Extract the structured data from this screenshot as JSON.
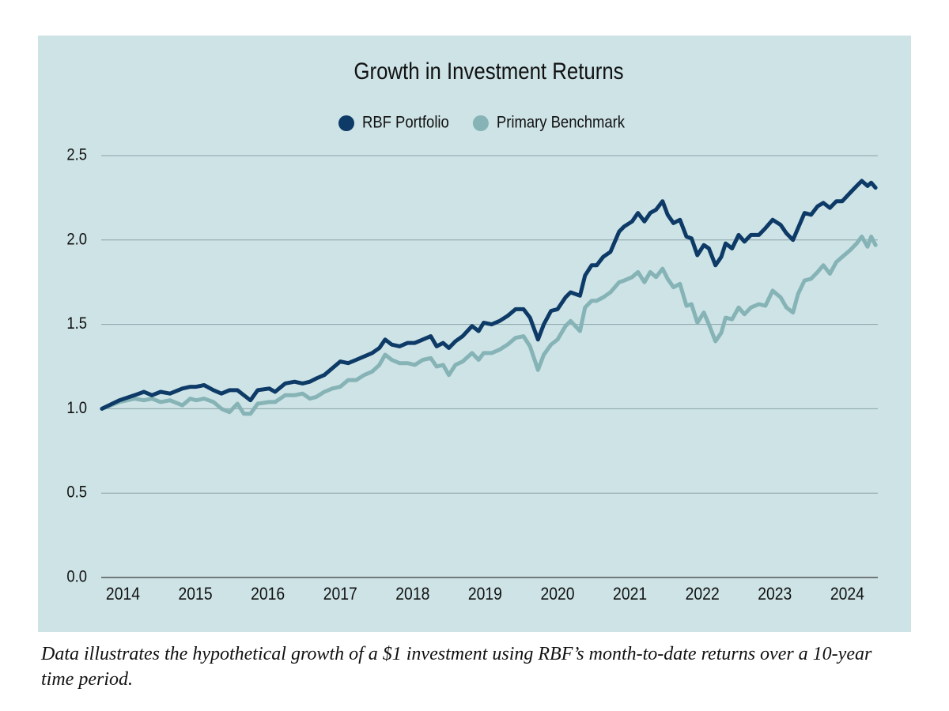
{
  "chart_data": {
    "type": "line",
    "title": "Growth in Investment Returns",
    "caption": "Data illustrates the hypothetical growth of a $1 investment using RBF’s month-to-date returns over a 10-year time period.",
    "x": [
      2014.21,
      2014.45,
      2014.66,
      2014.79,
      2014.9,
      2015.02,
      2015.15,
      2015.32,
      2015.43,
      2015.51,
      2015.62,
      2015.75,
      2015.86,
      2015.97,
      2016.08,
      2016.17,
      2016.26,
      2016.36,
      2016.52,
      2016.6,
      2016.74,
      2016.87,
      2016.98,
      2017.08,
      2017.17,
      2017.28,
      2017.39,
      2017.5,
      2017.61,
      2017.72,
      2017.83,
      2017.94,
      2018.04,
      2018.12,
      2018.21,
      2018.32,
      2018.43,
      2018.53,
      2018.64,
      2018.75,
      2018.83,
      2018.92,
      2019.0,
      2019.09,
      2019.19,
      2019.32,
      2019.41,
      2019.48,
      2019.59,
      2019.7,
      2019.81,
      2019.92,
      2020.03,
      2020.12,
      2020.23,
      2020.31,
      2020.41,
      2020.5,
      2020.61,
      2020.68,
      2020.81,
      2020.88,
      2020.97,
      2021.04,
      2021.13,
      2021.23,
      2021.35,
      2021.42,
      2021.53,
      2021.61,
      2021.7,
      2021.78,
      2021.86,
      2021.95,
      2022.02,
      2022.1,
      2022.19,
      2022.28,
      2022.35,
      2022.43,
      2022.52,
      2022.59,
      2022.68,
      2022.76,
      2022.82,
      2022.91,
      2023.0,
      2023.08,
      2023.17,
      2023.28,
      2023.37,
      2023.47,
      2023.58,
      2023.66,
      2023.75,
      2023.82,
      2023.91,
      2024.0,
      2024.09,
      2024.17,
      2024.26,
      2024.35,
      2024.43,
      2024.54,
      2024.63,
      2024.7,
      2024.78,
      2024.83,
      2024.89
    ],
    "series": [
      {
        "name": "RBF Portfolio",
        "color": "#0d3a66",
        "values": [
          1.0,
          1.05,
          1.08,
          1.1,
          1.08,
          1.1,
          1.09,
          1.12,
          1.13,
          1.13,
          1.14,
          1.11,
          1.09,
          1.11,
          1.11,
          1.08,
          1.05,
          1.11,
          1.12,
          1.1,
          1.15,
          1.16,
          1.15,
          1.16,
          1.18,
          1.2,
          1.24,
          1.28,
          1.27,
          1.29,
          1.31,
          1.33,
          1.36,
          1.41,
          1.38,
          1.37,
          1.39,
          1.39,
          1.41,
          1.43,
          1.37,
          1.39,
          1.36,
          1.4,
          1.43,
          1.49,
          1.46,
          1.51,
          1.5,
          1.52,
          1.55,
          1.59,
          1.59,
          1.54,
          1.41,
          1.5,
          1.58,
          1.59,
          1.66,
          1.69,
          1.67,
          1.79,
          1.85,
          1.85,
          1.9,
          1.93,
          2.05,
          2.08,
          2.11,
          2.16,
          2.11,
          2.16,
          2.18,
          2.23,
          2.15,
          2.1,
          2.12,
          2.02,
          2.01,
          1.91,
          1.97,
          1.95,
          1.85,
          1.9,
          1.98,
          1.95,
          2.03,
          1.99,
          2.03,
          2.03,
          2.07,
          2.12,
          2.09,
          2.04,
          2.0,
          2.07,
          2.16,
          2.15,
          2.2,
          2.22,
          2.19,
          2.23,
          2.23,
          2.28,
          2.32,
          2.35,
          2.32,
          2.34,
          2.31
        ]
      },
      {
        "name": "Primary Benchmark",
        "color": "#86b3b6",
        "values": [
          1.0,
          1.04,
          1.06,
          1.05,
          1.06,
          1.04,
          1.05,
          1.02,
          1.06,
          1.05,
          1.06,
          1.04,
          1.0,
          0.98,
          1.03,
          0.97,
          0.97,
          1.03,
          1.04,
          1.04,
          1.08,
          1.08,
          1.09,
          1.06,
          1.07,
          1.1,
          1.12,
          1.13,
          1.17,
          1.17,
          1.2,
          1.22,
          1.26,
          1.32,
          1.29,
          1.27,
          1.27,
          1.26,
          1.29,
          1.3,
          1.25,
          1.26,
          1.2,
          1.26,
          1.28,
          1.33,
          1.29,
          1.33,
          1.33,
          1.35,
          1.38,
          1.42,
          1.43,
          1.37,
          1.23,
          1.32,
          1.38,
          1.41,
          1.49,
          1.52,
          1.46,
          1.6,
          1.64,
          1.64,
          1.66,
          1.69,
          1.75,
          1.76,
          1.78,
          1.81,
          1.75,
          1.81,
          1.78,
          1.83,
          1.77,
          1.72,
          1.74,
          1.61,
          1.62,
          1.51,
          1.57,
          1.5,
          1.4,
          1.45,
          1.54,
          1.53,
          1.6,
          1.56,
          1.6,
          1.62,
          1.61,
          1.7,
          1.66,
          1.6,
          1.57,
          1.68,
          1.76,
          1.77,
          1.81,
          1.85,
          1.8,
          1.87,
          1.9,
          1.94,
          1.98,
          2.02,
          1.96,
          2.02,
          1.97
        ]
      }
    ],
    "xlim": [
      2014.2,
      2024.9
    ],
    "xticks": [
      {
        "value": 2014.5,
        "label": "2014"
      },
      {
        "value": 2015.5,
        "label": "2015"
      },
      {
        "value": 2016.5,
        "label": "2016"
      },
      {
        "value": 2017.5,
        "label": "2017"
      },
      {
        "value": 2018.5,
        "label": "2018"
      },
      {
        "value": 2019.5,
        "label": "2019"
      },
      {
        "value": 2020.5,
        "label": "2020"
      },
      {
        "value": 2021.5,
        "label": "2021"
      },
      {
        "value": 2022.5,
        "label": "2022"
      },
      {
        "value": 2023.5,
        "label": "2023"
      },
      {
        "value": 2024.5,
        "label": "2024"
      }
    ],
    "ylim": [
      0,
      2.5
    ],
    "yticks": [
      {
        "value": 0,
        "label": "0.0"
      },
      {
        "value": 0.5,
        "label": "0.5"
      },
      {
        "value": 1,
        "label": "1.0"
      },
      {
        "value": 1.5,
        "label": "1.5"
      },
      {
        "value": 2,
        "label": "2.0"
      },
      {
        "value": 2.5,
        "label": "2.5"
      }
    ],
    "grid": true,
    "legend": "top"
  }
}
